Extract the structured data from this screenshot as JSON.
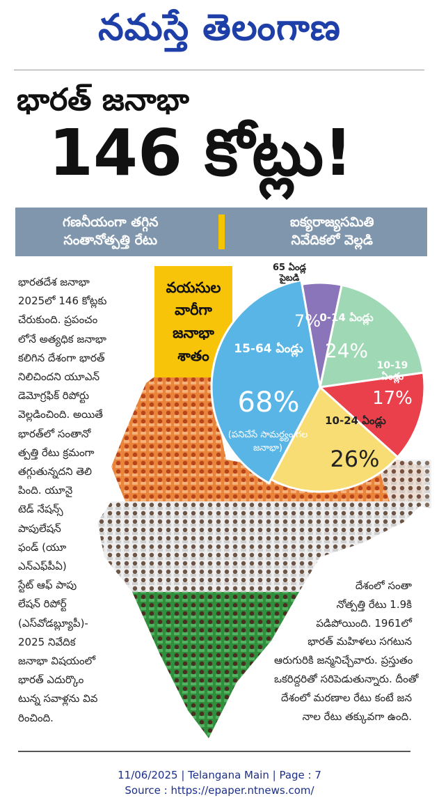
{
  "masthead": {
    "title": "నమస్తే తెలంగాణ"
  },
  "headline": {
    "line1": "భారత్ జనాభా",
    "line2": "146 కోట్లు!"
  },
  "banner": {
    "left_line1": "గణనీయంగా తగ్గిన",
    "left_line2": "సంతానోత్పత్తి రేటు",
    "right_line1": "ఐక్యరాజ్యసమితి",
    "right_line2": "నివేదికలో వెల్లడి"
  },
  "infobox": {
    "line1": "వయసుల",
    "line2": "వారీగా",
    "line3": "జనాభా",
    "line4": "శాతం"
  },
  "chart_data": {
    "type": "pie",
    "title": "వయసుల వారీగా జనాభా శాతం",
    "slices": [
      {
        "label": "0-14 ఏండ్లు",
        "value": 24,
        "display": "24%",
        "color": "#9fd8b4"
      },
      {
        "label": "10-19 ఏండ్లు",
        "value": 17,
        "display": "17%",
        "color": "#e9404c"
      },
      {
        "label": "10-24 ఏండ్లు",
        "value": 26,
        "display": "26%",
        "color": "#f7dd74"
      },
      {
        "label": "15-64 ఏండ్లు",
        "value": 68,
        "display": "68%",
        "note": "(పనిచేసే సామర్థ్యం గల జనాభా)",
        "color": "#59b5e6"
      },
      {
        "label": "65 ఏండ్ల పైబడి",
        "value": 7,
        "display": "7%",
        "color": "#8a74ba"
      }
    ]
  },
  "article_left": [
    "భారతదేశ జనాభా",
    "2025లో 146 కోట్లకు",
    "చేరుకుంది. ప్రపంచం",
    "లోనే అత్యధిక జనాభా",
    "కలిగిన దేశంగా భారత్",
    "నిలిచిందని యూఎన్",
    "డెమోగ్రఫిక్ రిపోర్టు",
    "వెల్లడించింది. అయితే",
    "భారత్‌లో సంతానో",
    "త్పత్తి రేటు క్రమంగా",
    "తగ్గుతున్నదని తెలి",
    "పింది. యూనై",
    "టెడ్ నేషన్స్",
    "పాపులేషన్",
    "ఫండ్ (యూ",
    "ఎన్ఎఫ్‌పీఏ)",
    "స్టేట్ ఆఫ్ పాపు",
    "లేషన్ రిపోర్ట్",
    "(ఎస్‌వోడబ్ల్యూపీ)-",
    "2025 నివేదిక",
    "జనాభా విషయంలో",
    "భారత్ ఎదుర్కొం",
    "టున్న సవాళ్లను వివ",
    "రించింది."
  ],
  "article_right": [
    "దేశంలో సంతా",
    "నోత్పత్తి రేటు 1.9కి",
    "పడిపోయింది. 1961లో",
    "భారత్ మహిళలు సగటున",
    "ఆరుగురికి జన్మనిచ్చేవారు. ప్రస్తుతం",
    "ఒకరిద్దరితో సరిపెడుతున్నారు. దీంతో",
    "దేశంలో మరణాల రేటు కంటే జన",
    "నాల రేటు తక్కువగా ఉంది."
  ],
  "footer": {
    "line1": "11/06/2025 | Telangana Main | Page : 7",
    "line2": "Source : https://epaper.ntnews.com/"
  }
}
